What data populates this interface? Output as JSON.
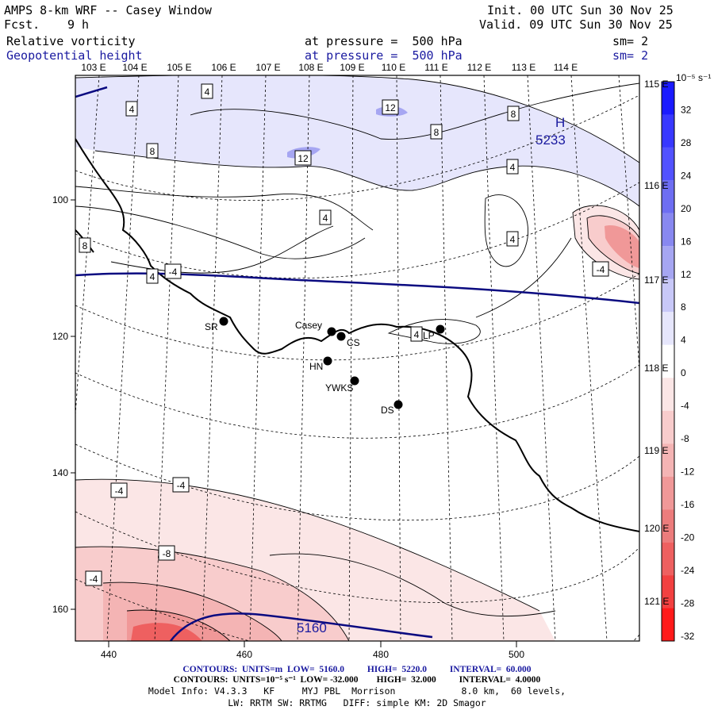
{
  "header": {
    "title": "AMPS 8-km WRF -- Casey Window",
    "fcst_label": "Fcst.",
    "fcst_value": "9 h",
    "init": "Init. 00 UTC Sun 30 Nov 25",
    "valid": "Valid. 09 UTC Sun 30 Nov 25",
    "field1": "Relative vorticity",
    "field1_pressure": "at pressure =  500 hPa",
    "field1_sm": "sm= 2",
    "field2": "Geopotential height",
    "field2_pressure": "at pressure =  500 hPa",
    "field2_sm": "sm= 2"
  },
  "lon_top": [
    "103 E",
    "104 E",
    "105 E",
    "106 E",
    "107 E",
    "108 E",
    "109 E",
    "110 E",
    "111 E",
    "112 E",
    "113 E",
    "114 E"
  ],
  "lon_right": [
    "115 E",
    "116 E",
    "117 E",
    "118 E",
    "119 E",
    "120 E",
    "121 E"
  ],
  "x_ticks": [
    "440",
    "460",
    "480",
    "500"
  ],
  "y_ticks": [
    "100",
    "120",
    "140",
    "160"
  ],
  "colorbar": {
    "unit": "10⁻⁵ s⁻¹",
    "labels": [
      "32",
      "28",
      "24",
      "20",
      "16",
      "12",
      "8",
      "4",
      "0",
      "-4",
      "-8",
      "-12",
      "-16",
      "-20",
      "-24",
      "-28",
      "-32"
    ],
    "colors": [
      "#1a1aff",
      "#3838ff",
      "#5252ff",
      "#6e6ef2",
      "#8888f0",
      "#a6a6f2",
      "#c8c8f8",
      "#e6e6fc",
      "#ffffff",
      "#fbe6e6",
      "#f8cccc",
      "#f4b4b4",
      "#f09898",
      "#ec7c7c",
      "#ee6060",
      "#f24040",
      "#ff1a1a"
    ],
    "value_lo": -32,
    "value_hi": 32
  },
  "stations": [
    {
      "name": "SR"
    },
    {
      "name": "Casey"
    },
    {
      "name": "CS"
    },
    {
      "name": "HN"
    },
    {
      "name": "YWKS"
    },
    {
      "name": "DS"
    },
    {
      "name": "LP"
    }
  ],
  "vorticity_labels": [
    "4",
    "4",
    "8",
    "12",
    "12",
    "8",
    "8",
    "4",
    "4",
    "4",
    "8",
    "4",
    "-4",
    "4",
    "-4",
    "-4",
    "-4",
    "-8",
    "-4"
  ],
  "height_labels": {
    "high_marker": "H",
    "high_value": "5233",
    "contour_value": "5160"
  },
  "footer": {
    "line1_a": "CONTOURS:  UNITS=m  LOW=  5160.0",
    "line1_b": "HIGH=  5220.0",
    "line1_c": "INTERVAL=  60.000",
    "line2_a": "CONTOURS:  UNITS=10⁻⁵ s⁻¹  LOW= -32.000",
    "line2_b": "HIGH=  32.000",
    "line2_c": "INTERVAL=  4.0000",
    "line3": "Model Info: V4.3.3   KF     MYJ PBL  Morrison            8.0 km,  60 levels,",
    "line4": "LW: RRTM SW: RRTMG   DIFF: simple KM: 2D Smagor"
  }
}
